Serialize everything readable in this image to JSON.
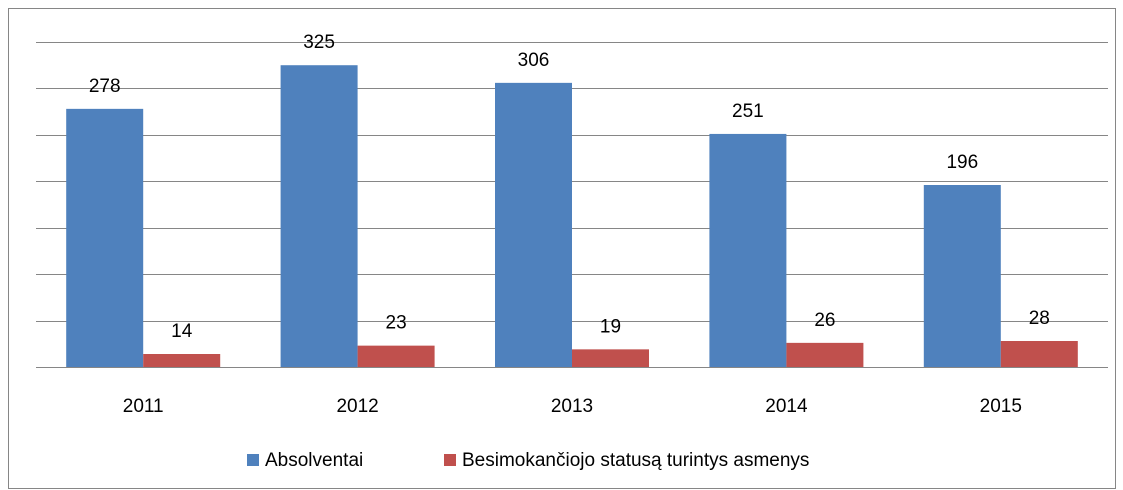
{
  "chart_data": {
    "type": "bar",
    "categories": [
      "2011",
      "2012",
      "2013",
      "2014",
      "2015"
    ],
    "series": [
      {
        "name": "Absolventai",
        "color": "#4f81bd",
        "values": [
          278,
          325,
          306,
          251,
          196
        ]
      },
      {
        "name": "Besimokančiojo statusą turintys asmenys",
        "color": "#c0504d",
        "values": [
          14,
          23,
          19,
          26,
          28
        ]
      }
    ],
    "ylim": [
      0,
      350
    ],
    "yticks": [
      0,
      50,
      100,
      150,
      200,
      250,
      300,
      350
    ],
    "grid": true,
    "legend": "bottom"
  }
}
